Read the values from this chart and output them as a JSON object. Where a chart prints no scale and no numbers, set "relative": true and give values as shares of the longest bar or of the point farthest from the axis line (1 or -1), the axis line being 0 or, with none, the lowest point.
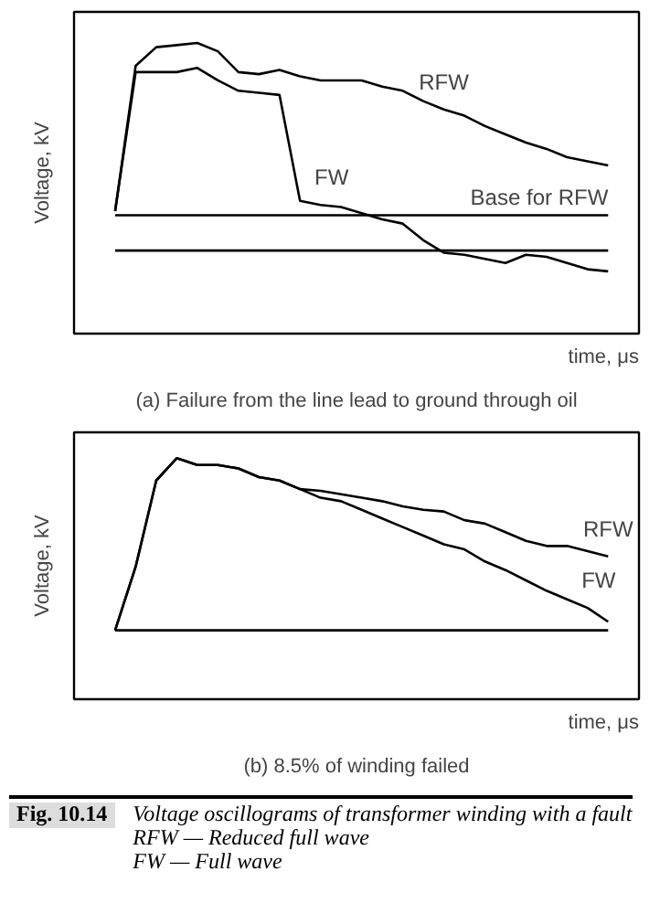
{
  "chart_data": [
    {
      "type": "line",
      "relative": true,
      "xlabel": "time, μs",
      "ylabel": "Voltage, kV",
      "categories": [
        null,
        null,
        null,
        null,
        null,
        null,
        null,
        null,
        null,
        null,
        null,
        null,
        null,
        null,
        null,
        null,
        null,
        null,
        null,
        null,
        null,
        null,
        null,
        null,
        null
      ],
      "series": [
        {
          "name": "RFW",
          "color": "#000000",
          "values": [
            0.19,
            0.89,
            0.98,
            0.99,
            1.0,
            0.96,
            0.86,
            0.85,
            0.87,
            0.84,
            0.82,
            0.82,
            0.82,
            0.79,
            0.77,
            0.72,
            0.68,
            0.65,
            0.6,
            0.56,
            0.52,
            0.49,
            0.45,
            0.43,
            0.41
          ]
        },
        {
          "name": "FW",
          "color": "#000000",
          "values": [
            0.19,
            0.86,
            0.86,
            0.86,
            0.88,
            0.82,
            0.77,
            0.76,
            0.75,
            0.24,
            0.22,
            0.21,
            0.18,
            0.15,
            0.13,
            0.05,
            -0.01,
            -0.02,
            -0.04,
            -0.06,
            -0.02,
            -0.03,
            -0.06,
            -0.09,
            -0.1
          ]
        }
      ],
      "ref_lines": [
        {
          "axis": "y",
          "value": 0.17,
          "label": "Base for RFW"
        },
        {
          "axis": "y",
          "value": 0,
          "label": null
        }
      ],
      "annotations": [
        "(a) Failure from the line lead to ground through oil"
      ]
    },
    {
      "type": "line",
      "relative": true,
      "xlabel": "time, μs",
      "ylabel": "Voltage, kV",
      "categories": [
        null,
        null,
        null,
        null,
        null,
        null,
        null,
        null,
        null,
        null,
        null,
        null,
        null,
        null,
        null,
        null,
        null,
        null,
        null,
        null,
        null,
        null,
        null,
        null,
        null
      ],
      "series": [
        {
          "name": "RFW",
          "color": "#000000",
          "values": [
            0.0,
            0.37,
            0.87,
            1.0,
            0.96,
            0.96,
            0.94,
            0.89,
            0.87,
            0.82,
            0.81,
            0.79,
            0.77,
            0.75,
            0.72,
            0.7,
            0.69,
            0.64,
            0.62,
            0.57,
            0.52,
            0.49,
            0.49,
            0.46,
            0.43
          ]
        },
        {
          "name": "FW",
          "color": "#000000",
          "values": [
            0.0,
            0.37,
            0.87,
            1.0,
            0.96,
            0.96,
            0.94,
            0.89,
            0.87,
            0.82,
            0.77,
            0.75,
            0.7,
            0.65,
            0.6,
            0.55,
            0.5,
            0.47,
            0.4,
            0.35,
            0.29,
            0.23,
            0.18,
            0.13,
            0.05
          ]
        }
      ],
      "ref_lines": [
        {
          "axis": "y",
          "value": 0,
          "label": null
        }
      ],
      "annotations": [
        "(b) 8.5% of winding failed",
        "Fig. 10.14",
        "Voltage oscillograms of transformer winding with a fault",
        "RFW — Reduced full wave",
        "FW — Full wave"
      ]
    }
  ]
}
